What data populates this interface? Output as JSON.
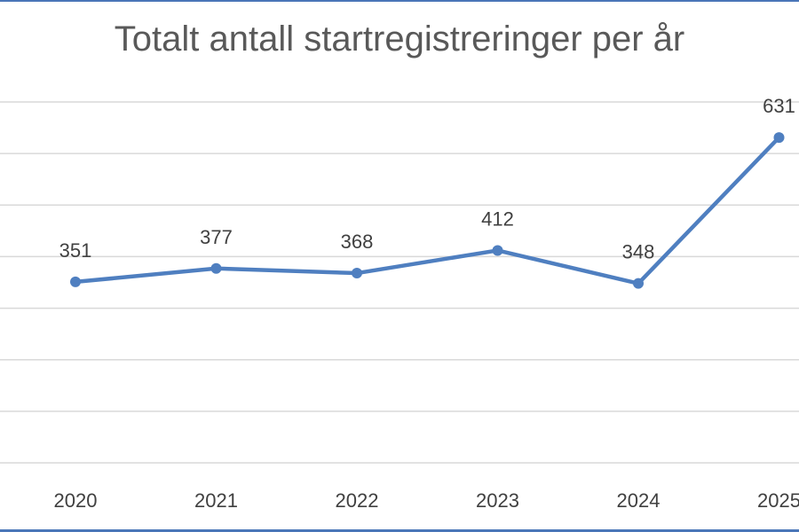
{
  "chart_data": {
    "type": "line",
    "title": "Totalt antall startregistreringer per år",
    "categories": [
      "2020",
      "2021",
      "2022",
      "2023",
      "2024",
      "2025"
    ],
    "series": [
      {
        "values": [
          351,
          377,
          368,
          412,
          348,
          631
        ]
      }
    ],
    "data_labels": [
      "351",
      "377",
      "368",
      "412",
      "348",
      "631"
    ],
    "ylim": [
      0,
      700
    ],
    "gridline_step": 100,
    "grid": true,
    "legend": "none",
    "colors": {
      "line": "#4f7fc0",
      "grid": "#d9d9d9",
      "frame": "#4a76b8"
    }
  }
}
